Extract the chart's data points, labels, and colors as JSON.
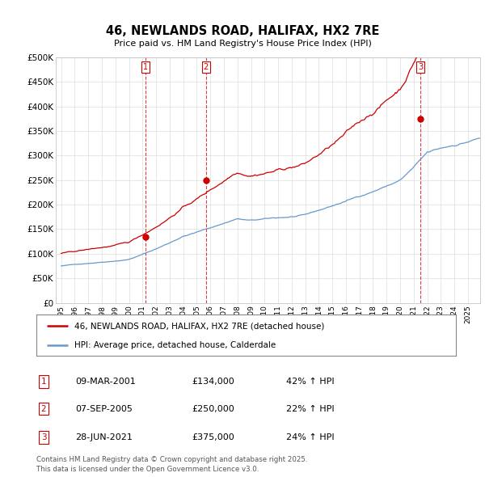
{
  "title": "46, NEWLANDS ROAD, HALIFAX, HX2 7RE",
  "subtitle": "Price paid vs. HM Land Registry's House Price Index (HPI)",
  "ylim": [
    0,
    500000
  ],
  "yticks": [
    0,
    50000,
    100000,
    150000,
    200000,
    250000,
    300000,
    350000,
    400000,
    450000,
    500000
  ],
  "ytick_labels": [
    "£0",
    "£50K",
    "£100K",
    "£150K",
    "£200K",
    "£250K",
    "£300K",
    "£350K",
    "£400K",
    "£450K",
    "£500K"
  ],
  "red_color": "#cc0000",
  "blue_color": "#6699cc",
  "background_color": "#ffffff",
  "grid_color": "#dddddd",
  "purchases": [
    {
      "date_num": 2001.19,
      "price": 134000,
      "label": "1"
    },
    {
      "date_num": 2005.68,
      "price": 250000,
      "label": "2"
    },
    {
      "date_num": 2021.49,
      "price": 375000,
      "label": "3"
    }
  ],
  "legend_entries": [
    "46, NEWLANDS ROAD, HALIFAX, HX2 7RE (detached house)",
    "HPI: Average price, detached house, Calderdale"
  ],
  "table_rows": [
    {
      "num": "1",
      "date": "09-MAR-2001",
      "price": "£134,000",
      "hpi": "42% ↑ HPI"
    },
    {
      "num": "2",
      "date": "07-SEP-2005",
      "price": "£250,000",
      "hpi": "22% ↑ HPI"
    },
    {
      "num": "3",
      "date": "28-JUN-2021",
      "price": "£375,000",
      "hpi": "24% ↑ HPI"
    }
  ],
  "footer": "Contains HM Land Registry data © Crown copyright and database right 2025.\nThis data is licensed under the Open Government Licence v3.0.",
  "start_year": 1995,
  "end_year": 2026
}
